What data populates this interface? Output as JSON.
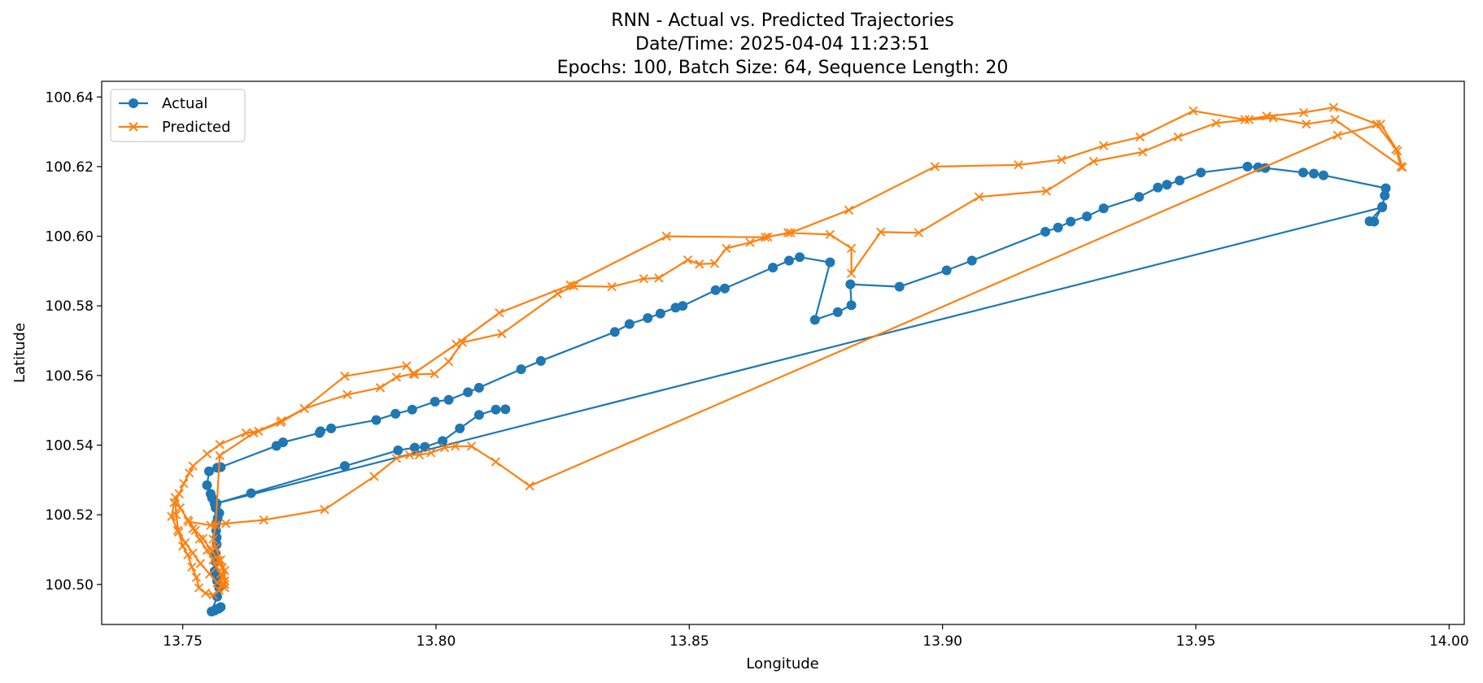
{
  "chart_data": {
    "type": "line",
    "title_lines": [
      "RNN - Actual vs. Predicted Trajectories",
      "Date/Time: 2025-04-04 11:23:51",
      "Epochs: 100, Batch Size: 64, Sequence Length: 20"
    ],
    "xlabel": "Longitude",
    "ylabel": "Latitude",
    "xlim": [
      13.734,
      14.003
    ],
    "ylim": [
      100.4885,
      100.6445
    ],
    "x_ticks": [
      "13.75",
      "13.80",
      "13.85",
      "13.90",
      "13.95",
      "14.00"
    ],
    "y_ticks": [
      "100.50",
      "100.52",
      "100.54",
      "100.56",
      "100.58",
      "100.60",
      "100.62",
      "100.64"
    ],
    "grid": false,
    "legend_position": "upper-left",
    "colors": {
      "actual": "#1f77b4",
      "predicted": "#ff7f0e"
    },
    "series": [
      {
        "name": "Actual",
        "marker": "circle",
        "points": [
          [
            13.7575,
            100.4935
          ],
          [
            13.7572,
            100.4932
          ],
          [
            13.757,
            100.493
          ],
          [
            13.7565,
            100.4928
          ],
          [
            13.7563,
            100.4925
          ],
          [
            13.7557,
            100.4922
          ],
          [
            13.7568,
            100.4965
          ],
          [
            13.7572,
            100.499
          ],
          [
            13.7568,
            100.501
          ],
          [
            13.7566,
            100.5025
          ],
          [
            13.7563,
            100.5038
          ],
          [
            13.7565,
            100.5065
          ],
          [
            13.7565,
            100.509
          ],
          [
            13.7567,
            100.5115
          ],
          [
            13.7567,
            100.5135
          ],
          [
            13.7566,
            100.5155
          ],
          [
            13.7566,
            100.5175
          ],
          [
            13.7569,
            100.519
          ],
          [
            13.7572,
            100.5205
          ],
          [
            13.7565,
            100.522
          ],
          [
            13.7563,
            100.5232
          ],
          [
            13.7558,
            100.5248
          ],
          [
            13.7555,
            100.526
          ],
          [
            13.7548,
            100.5285
          ],
          [
            13.7552,
            100.5325
          ],
          [
            13.7568,
            100.5335
          ],
          [
            13.7575,
            100.5337
          ],
          [
            13.7685,
            100.5398
          ],
          [
            13.7698,
            100.5408
          ],
          [
            13.777,
            100.5435
          ],
          [
            13.7772,
            100.544
          ],
          [
            13.7793,
            100.5448
          ],
          [
            13.7882,
            100.5472
          ],
          [
            13.792,
            100.549
          ],
          [
            13.7953,
            100.5502
          ],
          [
            13.7998,
            100.5525
          ],
          [
            13.8025,
            100.553
          ],
          [
            13.8063,
            100.5552
          ],
          [
            13.8085,
            100.5565
          ],
          [
            13.8168,
            100.5618
          ],
          [
            13.8207,
            100.5642
          ],
          [
            13.8353,
            100.5725
          ],
          [
            13.8382,
            100.5748
          ],
          [
            13.8418,
            100.5765
          ],
          [
            13.8443,
            100.5778
          ],
          [
            13.8473,
            100.5795
          ],
          [
            13.8487,
            100.58
          ],
          [
            13.8552,
            100.5845
          ],
          [
            13.857,
            100.585
          ],
          [
            13.8665,
            100.591
          ],
          [
            13.8697,
            100.593
          ],
          [
            13.8718,
            100.594
          ],
          [
            13.8778,
            100.5925
          ],
          [
            13.8748,
            100.576
          ],
          [
            13.8793,
            100.5782
          ],
          [
            13.882,
            100.5802
          ],
          [
            13.8818,
            100.5862
          ],
          [
            13.8915,
            100.5855
          ],
          [
            13.9008,
            100.5902
          ],
          [
            13.9058,
            100.593
          ],
          [
            13.9203,
            100.6013
          ],
          [
            13.9228,
            100.6025
          ],
          [
            13.9253,
            100.6042
          ],
          [
            13.9285,
            100.6057
          ],
          [
            13.9318,
            100.608
          ],
          [
            13.9388,
            100.6113
          ],
          [
            13.9425,
            100.614
          ],
          [
            13.9443,
            100.6148
          ],
          [
            13.9468,
            100.616
          ],
          [
            13.951,
            100.6183
          ],
          [
            13.9602,
            100.62
          ],
          [
            13.9623,
            100.6198
          ],
          [
            13.9637,
            100.6196
          ],
          [
            13.9712,
            100.6183
          ],
          [
            13.9733,
            100.618
          ],
          [
            13.9752,
            100.6175
          ],
          [
            13.9875,
            100.6138
          ],
          [
            13.9873,
            100.6117
          ],
          [
            13.9868,
            100.6085
          ],
          [
            13.9852,
            100.6042
          ],
          [
            13.9843,
            100.6043
          ],
          [
            13.9868,
            100.6083
          ],
          [
            13.7567,
            100.5233
          ],
          [
            13.7635,
            100.5262
          ],
          [
            13.782,
            100.534
          ],
          [
            13.7925,
            100.5385
          ],
          [
            13.7958,
            100.5393
          ],
          [
            13.7978,
            100.5395
          ],
          [
            13.8013,
            100.5412
          ],
          [
            13.8047,
            100.5448
          ],
          [
            13.8085,
            100.5487
          ],
          [
            13.8118,
            100.5502
          ],
          [
            13.8137,
            100.5503
          ]
        ]
      },
      {
        "name": "Predicted",
        "marker": "x",
        "points": [
          [
            13.7583,
            100.5
          ],
          [
            13.758,
            100.5025
          ],
          [
            13.7578,
            100.5048
          ],
          [
            13.757,
            100.507
          ],
          [
            13.7555,
            100.51
          ],
          [
            13.754,
            100.5132
          ],
          [
            13.7525,
            100.5155
          ],
          [
            13.751,
            100.5185
          ],
          [
            13.7495,
            100.522
          ],
          [
            13.7485,
            100.525
          ],
          [
            13.7487,
            100.52
          ],
          [
            13.7492,
            100.515
          ],
          [
            13.75,
            100.511
          ],
          [
            13.751,
            100.5085
          ],
          [
            13.7518,
            100.505
          ],
          [
            13.7527,
            100.502
          ],
          [
            13.7532,
            100.499
          ],
          [
            13.7545,
            100.4975
          ],
          [
            13.756,
            100.497
          ],
          [
            13.7572,
            100.4983
          ],
          [
            13.7578,
            100.5
          ],
          [
            13.7575,
            100.503
          ],
          [
            13.7567,
            100.505
          ],
          [
            13.756,
            100.507
          ],
          [
            13.7548,
            100.5098
          ],
          [
            13.7533,
            100.513
          ],
          [
            13.752,
            100.516
          ],
          [
            13.7512,
            100.518
          ],
          [
            13.7555,
            100.517
          ],
          [
            13.7585,
            100.5175
          ],
          [
            13.766,
            100.5185
          ],
          [
            13.778,
            100.5215
          ],
          [
            13.7878,
            100.531
          ],
          [
            13.7922,
            100.5362
          ],
          [
            13.7948,
            100.5372
          ],
          [
            13.7967,
            100.5372
          ],
          [
            13.799,
            100.5378
          ],
          [
            13.8017,
            100.5393
          ],
          [
            13.8038,
            100.5397
          ],
          [
            13.807,
            100.5397
          ],
          [
            13.8118,
            100.5352
          ],
          [
            13.8185,
            100.5283
          ],
          [
            13.978,
            100.629
          ],
          [
            13.9865,
            100.6322
          ],
          [
            13.9898,
            100.6245
          ],
          [
            13.9908,
            100.6198
          ],
          [
            13.9775,
            100.6335
          ],
          [
            13.9718,
            100.6322
          ],
          [
            13.9653,
            100.634
          ],
          [
            13.9605,
            100.6335
          ],
          [
            13.954,
            100.6325
          ],
          [
            13.9465,
            100.6285
          ],
          [
            13.9395,
            100.6242
          ],
          [
            13.9298,
            100.6215
          ],
          [
            13.9205,
            100.613
          ],
          [
            13.9072,
            100.6113
          ],
          [
            13.8953,
            100.601
          ],
          [
            13.8878,
            100.6012
          ],
          [
            13.882,
            100.5893
          ],
          [
            13.882,
            100.5965
          ],
          [
            13.8778,
            100.6005
          ],
          [
            13.8695,
            100.601
          ],
          [
            13.8655,
            100.5998
          ],
          [
            13.862,
            100.5982
          ],
          [
            13.8573,
            100.5965
          ],
          [
            13.855,
            100.5922
          ],
          [
            13.852,
            100.592
          ],
          [
            13.8497,
            100.5932
          ],
          [
            13.844,
            100.588
          ],
          [
            13.841,
            100.5878
          ],
          [
            13.8347,
            100.5855
          ],
          [
            13.8272,
            100.5857
          ],
          [
            13.824,
            100.5835
          ],
          [
            13.813,
            100.572
          ],
          [
            13.8052,
            100.5695
          ],
          [
            13.8025,
            100.564
          ],
          [
            13.7997,
            100.5605
          ],
          [
            13.7958,
            100.5603
          ],
          [
            13.7942,
            100.5628
          ],
          [
            13.782,
            100.5598
          ],
          [
            13.774,
            100.5505
          ],
          [
            13.7693,
            100.5465
          ],
          [
            13.765,
            100.544
          ],
          [
            13.7625,
            100.5435
          ],
          [
            13.7573,
            100.5402
          ],
          [
            13.7548,
            100.5375
          ],
          [
            13.752,
            100.534
          ],
          [
            13.7513,
            100.532
          ],
          [
            13.7502,
            100.529
          ],
          [
            13.7493,
            100.526
          ],
          [
            13.7483,
            100.5235
          ],
          [
            13.7478,
            100.5195
          ],
          [
            13.749,
            100.5155
          ],
          [
            13.7505,
            100.512
          ],
          [
            13.752,
            100.509
          ],
          [
            13.7535,
            100.506
          ],
          [
            13.7553,
            100.503
          ],
          [
            13.7568,
            100.5005
          ],
          [
            13.7583,
            100.499
          ],
          [
            13.7583,
            100.501
          ],
          [
            13.7583,
            100.504
          ],
          [
            13.7575,
            100.507
          ],
          [
            13.7565,
            100.5105
          ],
          [
            13.756,
            100.513
          ],
          [
            13.7565,
            100.517
          ],
          [
            13.7573,
            100.537
          ],
          [
            13.764,
            100.5435
          ],
          [
            13.7695,
            100.547
          ],
          [
            13.774,
            100.5505
          ],
          [
            13.7825,
            100.5545
          ],
          [
            13.789,
            100.5565
          ],
          [
            13.7922,
            100.5595
          ],
          [
            13.7955,
            100.5605
          ],
          [
            13.804,
            100.569
          ],
          [
            13.8125,
            100.578
          ],
          [
            13.8265,
            100.586
          ],
          [
            13.8455,
            100.6
          ],
          [
            13.865,
            100.5997
          ],
          [
            13.87,
            100.601
          ],
          [
            13.8815,
            100.6075
          ],
          [
            13.8985,
            100.62
          ],
          [
            13.915,
            100.6205
          ],
          [
            13.9235,
            100.622
          ],
          [
            13.9318,
            100.626
          ],
          [
            13.939,
            100.6285
          ],
          [
            13.9495,
            100.636
          ],
          [
            13.9597,
            100.6335
          ],
          [
            13.964,
            100.6345
          ],
          [
            13.9713,
            100.6355
          ],
          [
            13.9772,
            100.637
          ],
          [
            13.9857,
            100.6322
          ],
          [
            13.9895,
            100.625
          ],
          [
            13.9905,
            100.62
          ]
        ]
      }
    ]
  }
}
